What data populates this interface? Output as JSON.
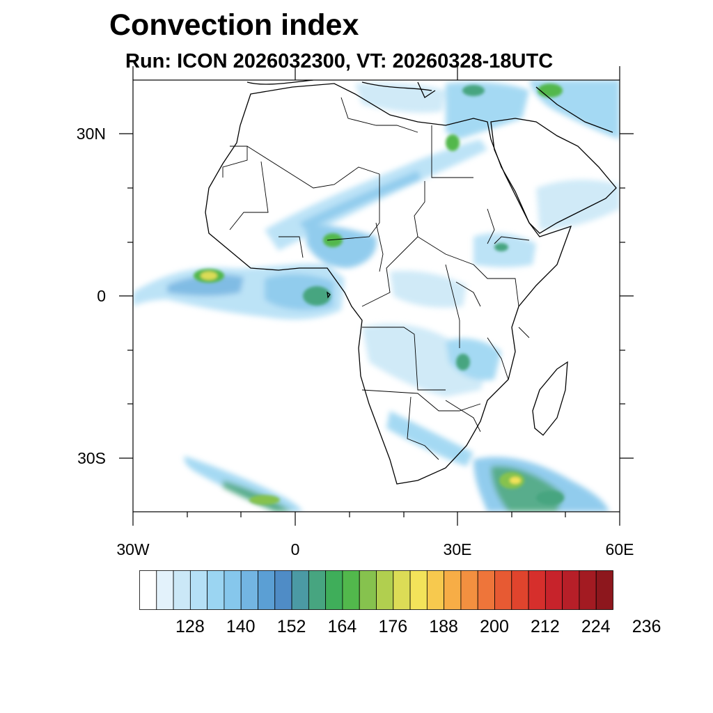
{
  "title": "Convection index",
  "subtitle": "Run: ICON 2026032300,  VT: 20260328-18UTC",
  "axes": {
    "lat_labels": [
      "30N",
      "0",
      "30S"
    ],
    "lon_labels": [
      "30W",
      "0",
      "30E",
      "60E"
    ],
    "lon_range": [
      -30,
      60
    ],
    "lat_range": [
      -40,
      40
    ]
  },
  "colorbar": {
    "labels": [
      "128",
      "140",
      "152",
      "164",
      "176",
      "188",
      "200",
      "212",
      "224",
      "236"
    ],
    "colors": [
      "#ffffff",
      "#e3f2fb",
      "#cbe8f7",
      "#b5e0f6",
      "#9bd5f2",
      "#86c7ec",
      "#73b5e2",
      "#5b9fd4",
      "#4f8cc6",
      "#4b9aa4",
      "#47a580",
      "#3fae5a",
      "#52b84c",
      "#86c24e",
      "#b1cf4f",
      "#dcdc56",
      "#f3e35a",
      "#f7c94e",
      "#f7ad46",
      "#f39040",
      "#ee753a",
      "#e75a33",
      "#e0442d",
      "#d62f2c",
      "#c7232b",
      "#b71f28",
      "#a31b22",
      "#8d171d"
    ]
  },
  "region": "Africa"
}
